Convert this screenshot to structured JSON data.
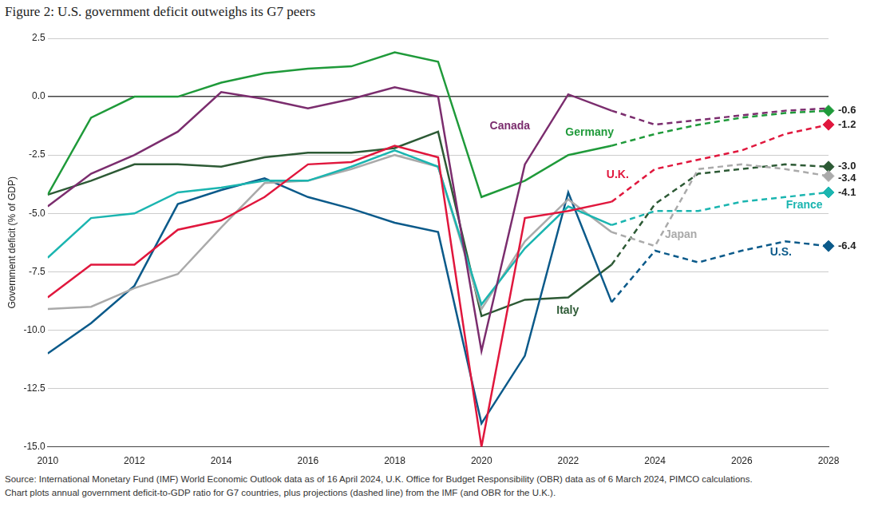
{
  "chart_data": {
    "type": "line",
    "title": "Figure 2: U.S. government deficit outweighs its G7 peers",
    "y_label": "Government deficit (% of GDP)",
    "footnote": [
      "Source: International Monetary Fund (IMF) World Economic Outlook data as of 16 April 2024, U.K. Office for Budget Responsibility (OBR) data as of 6 March 2024, PIMCO calculations.",
      "Chart plots annual government deficit-to-GDP ratio for G7 countries, plus projections (dashed line) from the IMF (and OBR for the U.K.)."
    ],
    "x": [
      2010,
      2011,
      2012,
      2013,
      2014,
      2015,
      2016,
      2017,
      2018,
      2019,
      2020,
      2021,
      2022,
      2023,
      2024,
      2025,
      2026,
      2027,
      2028
    ],
    "xlim": [
      2010,
      2028
    ],
    "xticks": [
      2010,
      2012,
      2014,
      2016,
      2018,
      2020,
      2022,
      2024,
      2026,
      2028
    ],
    "ylim": [
      -15,
      2.5
    ],
    "yticks": [
      2.5,
      {
        "value": 0,
        "label": "0.0"
      },
      -2.5,
      {
        "value": -5,
        "label": "-5.0"
      },
      -7.5,
      {
        "value": -10,
        "label": "-10.0"
      },
      -12.5,
      {
        "value": -15,
        "label": "-15.0"
      }
    ],
    "grid": true,
    "data_labels": true,
    "series": [
      {
        "name": "Canada",
        "color": "#7b2d6e",
        "values": [
          -4.7,
          -3.3,
          -2.5,
          -1.5,
          0.2,
          -0.1,
          -0.5,
          -0.1,
          0.4,
          0.0,
          -10.9,
          -2.9,
          0.1,
          -0.6,
          null,
          null,
          null,
          null,
          null
        ],
        "projection": [
          null,
          null,
          null,
          null,
          null,
          null,
          null,
          null,
          null,
          null,
          null,
          null,
          null,
          null,
          -1.2,
          -1.0,
          -0.8,
          -0.6,
          -0.5
        ]
      },
      {
        "name": "Germany",
        "color": "#1f9a3a",
        "marker": "diamond",
        "values": [
          -4.2,
          -0.9,
          0.0,
          0.0,
          0.6,
          1.0,
          1.2,
          1.3,
          1.9,
          1.5,
          -4.3,
          -3.6,
          -2.5,
          -2.1,
          null,
          null,
          null,
          null,
          null
        ],
        "projection": [
          null,
          null,
          null,
          null,
          null,
          null,
          null,
          null,
          null,
          null,
          null,
          null,
          null,
          null,
          -1.6,
          -1.2,
          -0.9,
          -0.7,
          -0.6
        ],
        "value_labels": [
          null,
          null,
          null,
          null,
          null,
          null,
          null,
          null,
          null,
          null,
          null,
          null,
          null,
          null,
          null,
          null,
          null,
          null,
          "-0.6"
        ]
      },
      {
        "name": "U.K.",
        "color": "#e0173d",
        "marker": "diamond",
        "values": [
          -8.6,
          -7.2,
          -7.2,
          -5.7,
          -5.3,
          -4.3,
          -2.9,
          -2.8,
          -2.1,
          -2.6,
          -15.0,
          -5.2,
          -4.9,
          -4.5,
          null,
          null,
          null,
          null,
          null
        ],
        "projection": [
          null,
          null,
          null,
          null,
          null,
          null,
          null,
          null,
          null,
          null,
          null,
          null,
          null,
          null,
          -3.1,
          -2.7,
          -2.3,
          -1.6,
          -1.2
        ],
        "value_labels": [
          null,
          null,
          null,
          null,
          null,
          null,
          null,
          null,
          null,
          null,
          null,
          null,
          null,
          null,
          null,
          null,
          null,
          null,
          "-1.2"
        ]
      },
      {
        "name": "France",
        "color": "#1bb5b0",
        "marker": "diamond",
        "values": [
          -6.9,
          -5.2,
          -5.0,
          -4.1,
          -3.9,
          -3.6,
          -3.6,
          -3.0,
          -2.3,
          -3.0,
          -8.9,
          -6.5,
          -4.7,
          -5.5,
          null,
          null,
          null,
          null,
          null
        ],
        "projection": [
          null,
          null,
          null,
          null,
          null,
          null,
          null,
          null,
          null,
          null,
          null,
          null,
          null,
          null,
          -4.9,
          -4.9,
          -4.5,
          -4.3,
          -4.1
        ],
        "value_labels": [
          null,
          null,
          null,
          null,
          null,
          null,
          null,
          null,
          null,
          null,
          null,
          null,
          null,
          null,
          null,
          null,
          null,
          null,
          "-4.1"
        ]
      },
      {
        "name": "Japan",
        "color": "#aaaaaa",
        "marker": "diamond",
        "values": [
          -9.1,
          -9.0,
          -8.2,
          -7.6,
          -5.6,
          -3.7,
          -3.6,
          -3.1,
          -2.5,
          -3.0,
          -9.1,
          -6.2,
          -4.4,
          -5.8,
          null,
          null,
          null,
          null,
          null
        ],
        "projection": [
          null,
          null,
          null,
          null,
          null,
          null,
          null,
          null,
          null,
          null,
          null,
          null,
          null,
          null,
          -6.4,
          -3.1,
          -2.9,
          -3.1,
          -3.4
        ],
        "value_labels": [
          null,
          null,
          null,
          null,
          null,
          null,
          null,
          null,
          null,
          null,
          null,
          null,
          null,
          null,
          null,
          null,
          null,
          null,
          "-3.4"
        ]
      },
      {
        "name": "U.S.",
        "color": "#0b5a8a",
        "marker": "diamond",
        "values": [
          -11.0,
          -9.7,
          -8.1,
          -4.6,
          -4.0,
          -3.5,
          -4.3,
          -4.8,
          -5.4,
          -5.8,
          -14.0,
          -11.1,
          -4.1,
          -8.8,
          null,
          null,
          null,
          null,
          null
        ],
        "projection": [
          null,
          null,
          null,
          null,
          null,
          null,
          null,
          null,
          null,
          null,
          null,
          null,
          null,
          null,
          -6.6,
          -7.1,
          -6.6,
          -6.2,
          -6.4
        ],
        "value_labels": [
          null,
          null,
          null,
          null,
          null,
          null,
          null,
          null,
          null,
          null,
          null,
          null,
          null,
          null,
          null,
          null,
          null,
          null,
          "-6.4"
        ]
      },
      {
        "name": "Italy",
        "color": "#2d5a35",
        "marker": "diamond",
        "values": [
          -4.2,
          -3.6,
          -2.9,
          -2.9,
          -3.0,
          -2.6,
          -2.4,
          -2.4,
          -2.2,
          -1.5,
          -9.4,
          -8.7,
          -8.6,
          -7.2,
          null,
          null,
          null,
          null,
          null
        ],
        "projection": [
          null,
          null,
          null,
          null,
          null,
          null,
          null,
          null,
          null,
          null,
          null,
          null,
          null,
          null,
          -4.6,
          -3.3,
          -3.1,
          -2.9,
          -3.0
        ],
        "value_labels": [
          null,
          null,
          null,
          null,
          null,
          null,
          null,
          null,
          null,
          null,
          null,
          null,
          null,
          null,
          null,
          null,
          null,
          null,
          "-3.0"
        ]
      }
    ]
  }
}
